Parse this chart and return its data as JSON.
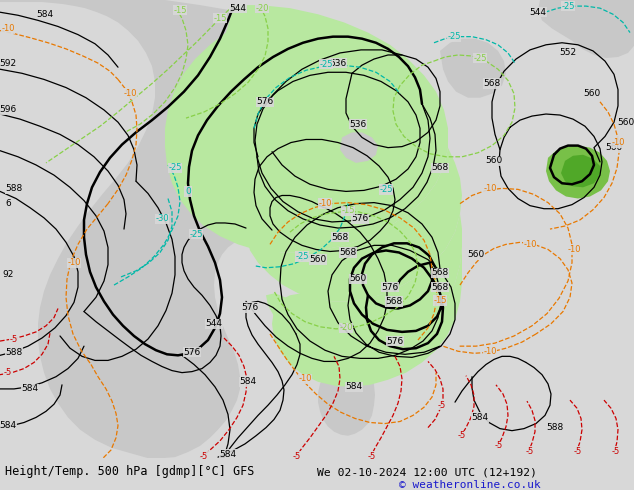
{
  "title_left": "Height/Temp. 500 hPa [gdmp][°C] GFS",
  "title_right": "We 02-10-2024 12:00 UTC (12+192)",
  "copyright": "© weatheronline.co.uk",
  "fig_width": 6.34,
  "fig_height": 4.9,
  "dpi": 100,
  "bg_color": "#d8d8d8",
  "land_color": "#c8c8c8",
  "ocean_color": "#d8d8d8",
  "green_light": "#b8e8a0",
  "green_dark": "#78c848",
  "black": "#000000",
  "orange": "#e87800",
  "red": "#cc0000",
  "cyan": "#00b8a8",
  "lime": "#88d048"
}
